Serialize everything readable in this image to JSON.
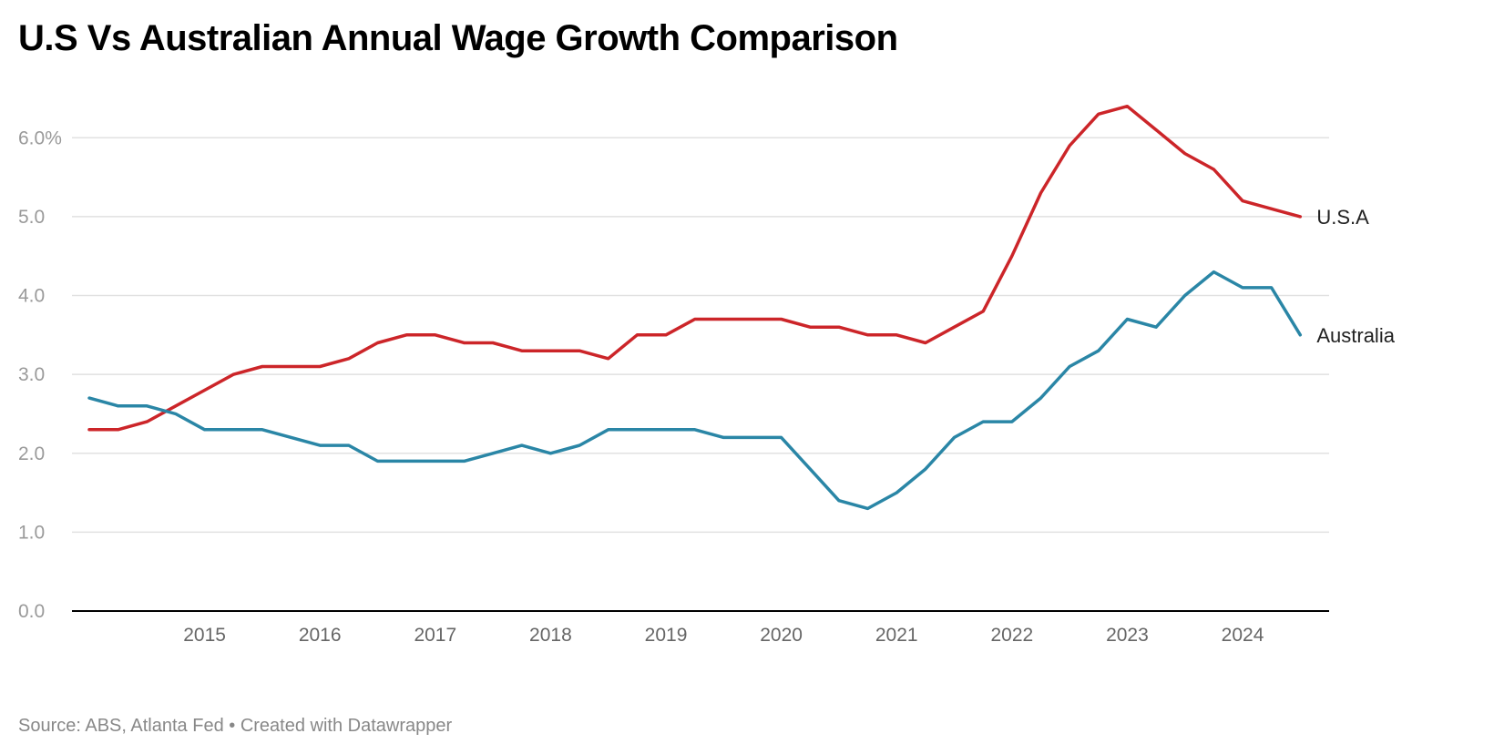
{
  "title": "U.S Vs Australian Annual Wage Growth Comparison",
  "footer": {
    "source": "Source: ABS, Atlanta Fed",
    "separator": " • ",
    "credit": "Created with Datawrapper"
  },
  "colors": {
    "usa": "#cc2529",
    "australia": "#2a86a6",
    "grid": "#e1e1e1",
    "axis": "#000000"
  },
  "chart_data": {
    "type": "line",
    "title": "U.S Vs Australian Annual Wage Growth Comparison",
    "xlabel": "",
    "ylabel": "",
    "ylim": [
      0,
      6.5
    ],
    "xlim": [
      2013.85,
      2024.75
    ],
    "y_ticks": [
      0,
      1,
      2,
      3,
      4,
      5,
      6
    ],
    "y_tick_labels": [
      "0.0",
      "1.0",
      "2.0",
      "3.0",
      "4.0",
      "5.0",
      "6.0%"
    ],
    "x_ticks": [
      2015,
      2016,
      2017,
      2018,
      2019,
      2020,
      2021,
      2022,
      2023,
      2024
    ],
    "x_tick_labels": [
      "2015",
      "2016",
      "2017",
      "2018",
      "2019",
      "2020",
      "2021",
      "2022",
      "2023",
      "2024"
    ],
    "grid": true,
    "x": [
      2014.0,
      2014.25,
      2014.5,
      2014.75,
      2015.0,
      2015.25,
      2015.5,
      2015.75,
      2016.0,
      2016.25,
      2016.5,
      2016.75,
      2017.0,
      2017.25,
      2017.5,
      2017.75,
      2018.0,
      2018.25,
      2018.5,
      2018.75,
      2019.0,
      2019.25,
      2019.5,
      2019.75,
      2020.0,
      2020.25,
      2020.5,
      2020.75,
      2021.0,
      2021.25,
      2021.5,
      2021.75,
      2022.0,
      2022.25,
      2022.5,
      2022.75,
      2023.0,
      2023.25,
      2023.5,
      2023.75,
      2024.0,
      2024.25,
      2024.5
    ],
    "series": [
      {
        "name": "U.S.A",
        "color": "#cc2529",
        "values": [
          2.3,
          2.3,
          2.4,
          2.6,
          2.8,
          3.0,
          3.1,
          3.1,
          3.1,
          3.2,
          3.4,
          3.5,
          3.5,
          3.4,
          3.4,
          3.3,
          3.3,
          3.3,
          3.2,
          3.5,
          3.5,
          3.7,
          3.7,
          3.7,
          3.7,
          3.6,
          3.6,
          3.5,
          3.5,
          3.4,
          3.6,
          3.8,
          4.5,
          5.3,
          5.9,
          6.3,
          6.4,
          6.1,
          5.8,
          5.6,
          5.2,
          5.1,
          5.0
        ]
      },
      {
        "name": "Australia",
        "color": "#2a86a6",
        "values": [
          2.7,
          2.6,
          2.6,
          2.5,
          2.3,
          2.3,
          2.3,
          2.2,
          2.1,
          2.1,
          1.9,
          1.9,
          1.9,
          1.9,
          2.0,
          2.1,
          2.0,
          2.1,
          2.3,
          2.3,
          2.3,
          2.3,
          2.2,
          2.2,
          2.2,
          1.8,
          1.4,
          1.3,
          1.5,
          1.8,
          2.2,
          2.4,
          2.4,
          2.7,
          3.1,
          3.3,
          3.7,
          3.6,
          4.0,
          4.3,
          4.1,
          4.1,
          3.5
        ]
      }
    ]
  }
}
